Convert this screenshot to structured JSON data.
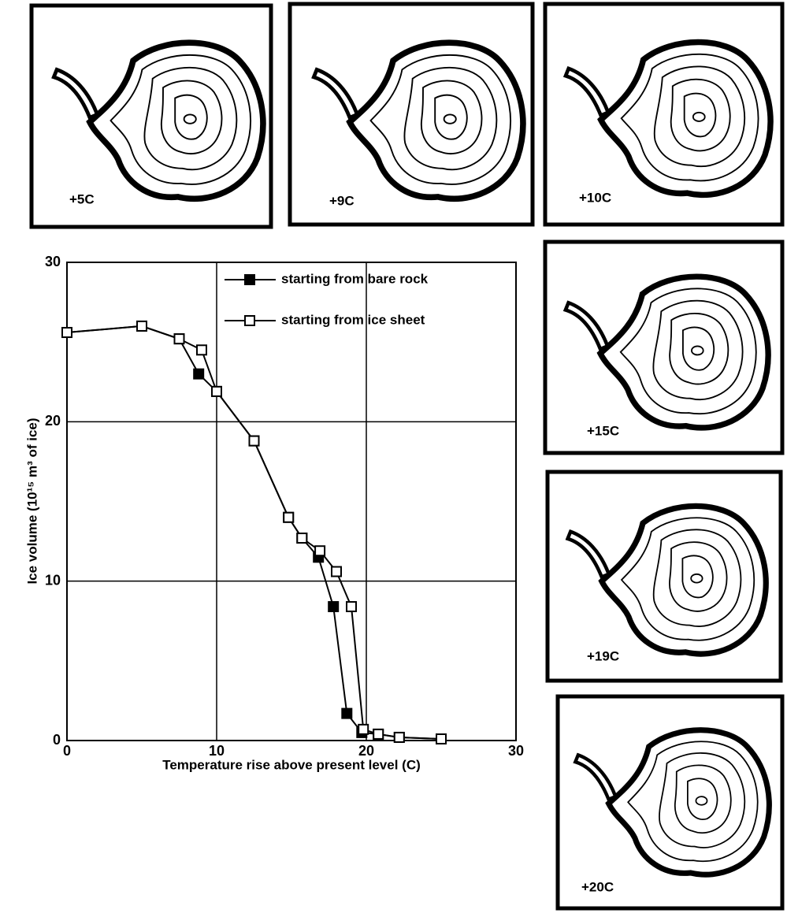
{
  "chart_data": {
    "type": "line",
    "xlabel": "Temperature rise above present level (C)",
    "ylabel": "Ice volume (10¹⁵ m³ of ice)",
    "xlim": [
      0,
      30
    ],
    "xticks": [
      0,
      10,
      20,
      30
    ],
    "ylim": [
      0,
      30
    ],
    "yticks": [
      0,
      10,
      20,
      30
    ],
    "grid": true,
    "legend": "upper right",
    "series": [
      {
        "name": "starting from bare rock",
        "color": "#000000",
        "marker": "filled-square",
        "x": [
          0,
          5,
          7.5,
          8.8,
          10,
          12.5,
          14.8,
          15.7,
          16.8,
          17.8,
          18.7,
          19.7,
          20.8,
          22.2,
          25
        ],
        "values": [
          25.6,
          26.0,
          25.2,
          23.0,
          21.9,
          18.8,
          14.0,
          12.7,
          11.5,
          8.4,
          1.7,
          0.5,
          0.4,
          0.2,
          0.1
        ]
      },
      {
        "name": "starting from ice sheet",
        "color": "#000000",
        "marker": "open-square",
        "x": [
          0,
          5,
          7.5,
          9,
          10,
          12.5,
          14.8,
          15.7,
          16.9,
          18,
          19,
          19.8,
          20.8,
          22.2,
          25
        ],
        "values": [
          25.6,
          26.0,
          25.2,
          24.5,
          21.9,
          18.8,
          14.0,
          12.7,
          11.9,
          10.6,
          8.4,
          0.7,
          0.4,
          0.2,
          0.1
        ]
      }
    ]
  },
  "maps": [
    {
      "label": "+5C"
    },
    {
      "label": "+9C"
    },
    {
      "label": "+10C"
    },
    {
      "label": "+15C"
    },
    {
      "label": "+19C"
    },
    {
      "label": "+20C"
    }
  ]
}
